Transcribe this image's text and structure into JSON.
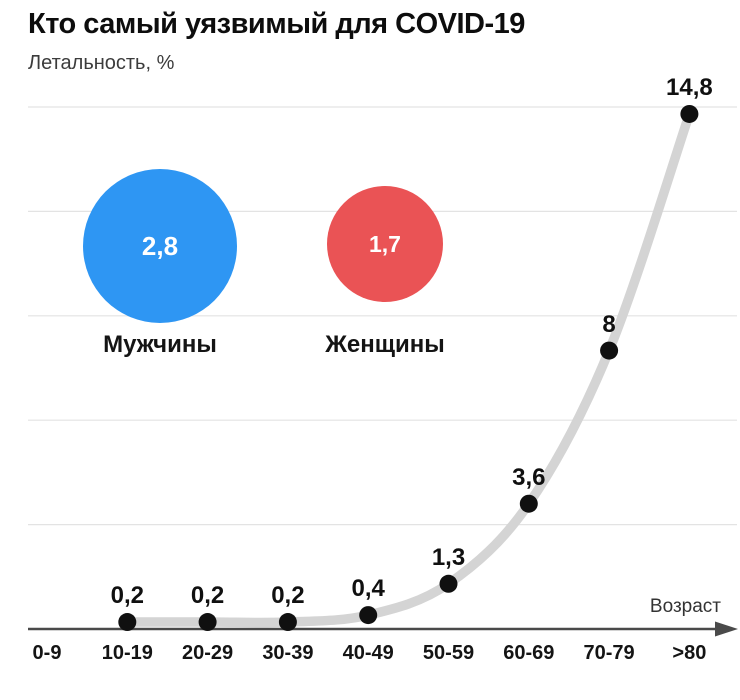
{
  "title": "Кто самый уязвимый для COVID-19",
  "subtitle": "Летальность, %",
  "bubbles": {
    "men": {
      "value": "2,8",
      "label": "Мужчины",
      "color": "#2e96f3"
    },
    "women": {
      "value": "1,7",
      "label": "Женщины",
      "color": "#ea5355"
    }
  },
  "chart_data": {
    "type": "line",
    "title": "Кто самый уязвимый для COVID-19",
    "subtitle": "Летальность, %",
    "xlabel": "Возраст",
    "ylabel": "Летальность, %",
    "categories": [
      "0-9",
      "10-19",
      "20-29",
      "30-39",
      "40-49",
      "50-59",
      "60-69",
      "70-79",
      ">80"
    ],
    "values": [
      null,
      0.2,
      0.2,
      0.2,
      0.4,
      1.3,
      3.6,
      8,
      14.8
    ],
    "point_labels": [
      "",
      "0,2",
      "0,2",
      "0,2",
      "0,4",
      "1,3",
      "3,6",
      "8",
      "14,8"
    ],
    "ylim": [
      0,
      15
    ],
    "gridline_values": [
      3,
      6,
      9,
      12,
      15
    ],
    "grid": true,
    "legend_position": "none",
    "line_color": "#d4d4d4",
    "dot_color": "#101010",
    "grid_color": "#e3e3e3",
    "axis_color": "#4a4a4a"
  }
}
